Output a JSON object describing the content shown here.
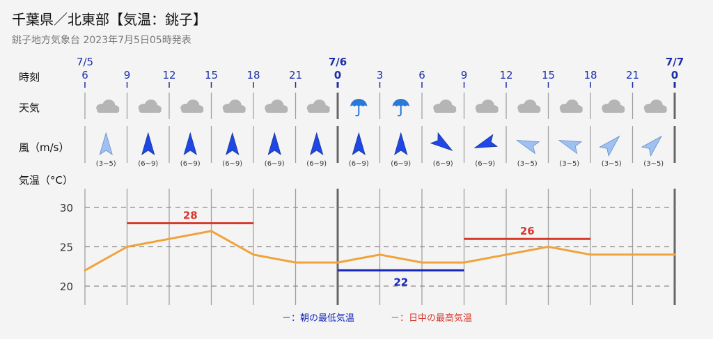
{
  "header": {
    "title": "千葉県／北東部【気温：銚子】",
    "subtitle": "銚子地方気象台 2023年7月5日05時発表"
  },
  "row_labels": {
    "time": "時刻",
    "weather": "天気",
    "wind": "風（m/s）",
    "temp": "気温（°C）"
  },
  "legend": {
    "min": "－：朝の最低気温",
    "max": "－：日中の最高気温"
  },
  "colors": {
    "line": "#f0a33a",
    "max": "#d6382c",
    "min": "#1426b8",
    "hours": "#1c2fa8",
    "umbrella": "#2a78d8",
    "cloud": "#b5b5b5",
    "wind_strong": "#1f46e6",
    "wind_light": "#9ec0f2"
  },
  "dates": [
    {
      "label": "7/5",
      "index": 0,
      "bold": false
    },
    {
      "label": "7/6",
      "index": 6,
      "bold": true
    },
    {
      "label": "7/7",
      "index": 14,
      "bold": true
    }
  ],
  "hours": [
    "6",
    "9",
    "12",
    "15",
    "18",
    "21",
    "0",
    "3",
    "6",
    "9",
    "12",
    "15",
    "18",
    "21",
    "0"
  ],
  "weather": [
    "cloud-icon",
    "cloud-icon",
    "cloud-icon",
    "cloud-icon",
    "cloud-icon",
    "cloud-icon",
    "umbrella-icon",
    "umbrella-icon",
    "cloud-icon",
    "cloud-icon",
    "cloud-icon",
    "cloud-icon",
    "cloud-icon",
    "cloud-icon"
  ],
  "wind": [
    {
      "speed": "(3~5)",
      "dir_deg": 0,
      "strength": "light"
    },
    {
      "speed": "(6~9)",
      "dir_deg": 0,
      "strength": "strong"
    },
    {
      "speed": "(6~9)",
      "dir_deg": 0,
      "strength": "strong"
    },
    {
      "speed": "(6~9)",
      "dir_deg": 0,
      "strength": "strong"
    },
    {
      "speed": "(6~9)",
      "dir_deg": 0,
      "strength": "strong"
    },
    {
      "speed": "(6~9)",
      "dir_deg": 0,
      "strength": "strong"
    },
    {
      "speed": "(6~9)",
      "dir_deg": 0,
      "strength": "strong"
    },
    {
      "speed": "(6~9)",
      "dir_deg": 0,
      "strength": "strong"
    },
    {
      "speed": "(6~9)",
      "dir_deg": 125,
      "strength": "strong"
    },
    {
      "speed": "(6~9)",
      "dir_deg": 250,
      "strength": "strong"
    },
    {
      "speed": "(3~5)",
      "dir_deg": 290,
      "strength": "light"
    },
    {
      "speed": "(3~5)",
      "dir_deg": 290,
      "strength": "light"
    },
    {
      "speed": "(3~5)",
      "dir_deg": 45,
      "strength": "light"
    },
    {
      "speed": "(3~5)",
      "dir_deg": 45,
      "strength": "light"
    }
  ],
  "chart_data": {
    "type": "line",
    "x": [
      "7/5 6",
      "9",
      "12",
      "15",
      "18",
      "21",
      "7/6 0",
      "3",
      "6",
      "9",
      "12",
      "15",
      "18",
      "21",
      "7/7 0"
    ],
    "series": [
      {
        "values": [
          22,
          25,
          26,
          27,
          24,
          23,
          23,
          24,
          23,
          23,
          24,
          25,
          24,
          24,
          24
        ]
      }
    ],
    "yticks": [
      20,
      25,
      30
    ],
    "ylim": [
      18,
      32
    ],
    "grid": true,
    "max_temps": [
      {
        "value": 28,
        "label": "28",
        "from_index": 1,
        "to_index": 4
      },
      {
        "value": 26,
        "label": "26",
        "from_index": 9,
        "to_index": 12
      }
    ],
    "min_temps": [
      {
        "value": 22,
        "label": "22",
        "from_index": 6,
        "to_index": 9
      }
    ]
  }
}
